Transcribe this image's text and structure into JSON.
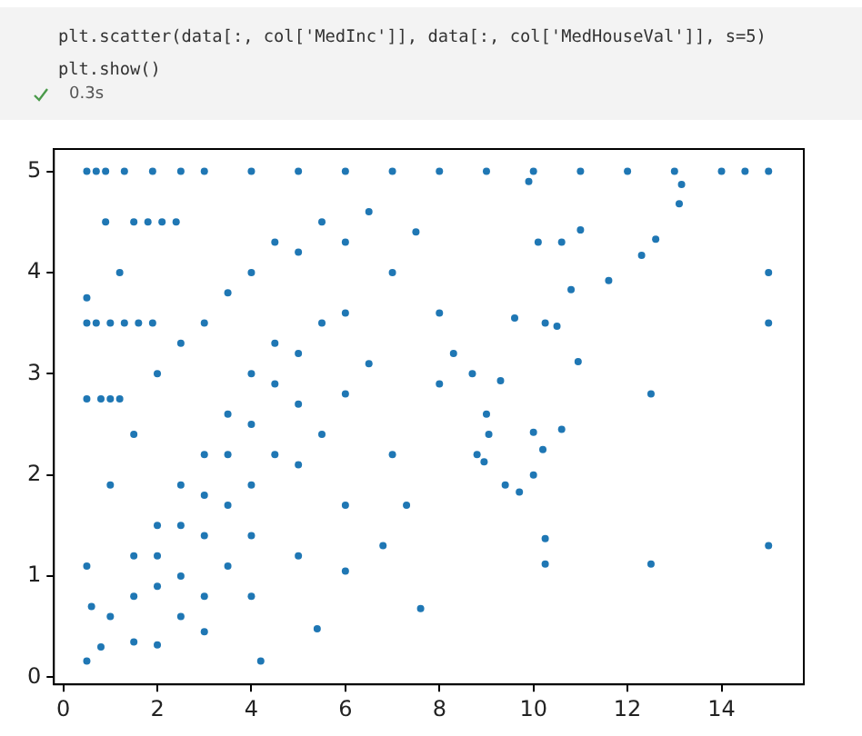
{
  "chart_data": {
    "type": "scatter",
    "annotations": [
      "plt.scatter(data[:, col['MedInc']], data[:, col['MedHouseVal']], s=5)",
      "plt.show()",
      "0.3s"
    ],
    "series": [
      {
        "color": "#1f77b4",
        "x": [
          15,
          15,
          15,
          15,
          12.5,
          12.5,
          13.1,
          13.15,
          12.6,
          12.3,
          11.6,
          10.95,
          10.25,
          10.25,
          10.2,
          10,
          10,
          9.7,
          10.6,
          9.3,
          8.95,
          9.05,
          7.6,
          5.4,
          4.2,
          0.5,
          0.5,
          0.9,
          1.2,
          10.25,
          10.5,
          10.8,
          9.6,
          11,
          10.6,
          10.1,
          0.5,
          0.7,
          0.9,
          1.3,
          1.9,
          2.5,
          3,
          4,
          5,
          6,
          7,
          8,
          9,
          10,
          11,
          12,
          13,
          14,
          14.5,
          0.5,
          0.7,
          1,
          1.3,
          1.6,
          1.9,
          0.5,
          0.8,
          1,
          1.2,
          1.5,
          1.8,
          2.1,
          2.4,
          0.8,
          1.5,
          2,
          3,
          4,
          5,
          6,
          7,
          0.5,
          0.6,
          1,
          1.5,
          2,
          2.5,
          3,
          3.5,
          4,
          4.5,
          5,
          5.5,
          6,
          6.5,
          7,
          7.5,
          8,
          8.3,
          8.7,
          9,
          1,
          1.5,
          2,
          2.5,
          3,
          3.5,
          4,
          4.5,
          5,
          5.5,
          6,
          6.5,
          1.5,
          2,
          2.5,
          3,
          3.5,
          4,
          4.5,
          5,
          5.5,
          6,
          2,
          2.5,
          3,
          3.5,
          4,
          4.5,
          5,
          2.5,
          3,
          3.5,
          4,
          8,
          7.3,
          6.8,
          6,
          8.8,
          9.4,
          9.9
        ],
        "values": [
          5,
          4,
          3.5,
          1.3,
          1.12,
          2.8,
          4.68,
          4.87,
          4.33,
          4.17,
          3.92,
          3.12,
          1.37,
          1.12,
          2.25,
          2.42,
          2,
          1.83,
          2.45,
          2.93,
          2.13,
          2.4,
          0.68,
          0.48,
          0.16,
          0.16,
          3.75,
          4.5,
          4,
          3.5,
          3.47,
          3.83,
          3.55,
          4.42,
          4.3,
          4.3,
          5,
          5,
          5,
          5,
          5,
          5,
          5,
          5,
          5,
          5,
          5,
          5,
          5,
          5,
          5,
          5,
          5,
          5,
          5,
          3.5,
          3.5,
          3.5,
          3.5,
          3.5,
          3.5,
          2.75,
          2.75,
          2.75,
          2.75,
          4.5,
          4.5,
          4.5,
          4.5,
          0.3,
          0.35,
          0.32,
          0.45,
          0.8,
          1.2,
          1.7,
          2.2,
          1.1,
          0.7,
          1.9,
          2.4,
          3,
          3.3,
          3.5,
          3.8,
          4,
          4.3,
          4.2,
          4.5,
          4.3,
          4.6,
          4,
          4.4,
          3.6,
          3.2,
          3,
          2.6,
          0.6,
          0.8,
          1.2,
          1.5,
          1.8,
          2.2,
          2.5,
          2.9,
          3.2,
          3.5,
          3.6,
          3.1,
          1.2,
          1.5,
          1.9,
          2.2,
          2.6,
          3,
          3.3,
          2.7,
          2.4,
          2.8,
          0.9,
          1,
          1.4,
          1.7,
          1.9,
          2.2,
          2.1,
          0.6,
          0.8,
          1.1,
          1.4,
          2.9,
          1.7,
          1.3,
          1.05,
          2.2,
          1.9,
          4.9
        ]
      }
    ],
    "xlim": [
      -0.2,
      15.75
    ],
    "ylim": [
      -0.07,
      5.22
    ],
    "xticks": [
      0,
      2,
      4,
      6,
      8,
      10,
      12,
      14
    ],
    "yticks": [
      0,
      1,
      2,
      3,
      4,
      5
    ],
    "grid": false,
    "marker": "circle"
  }
}
